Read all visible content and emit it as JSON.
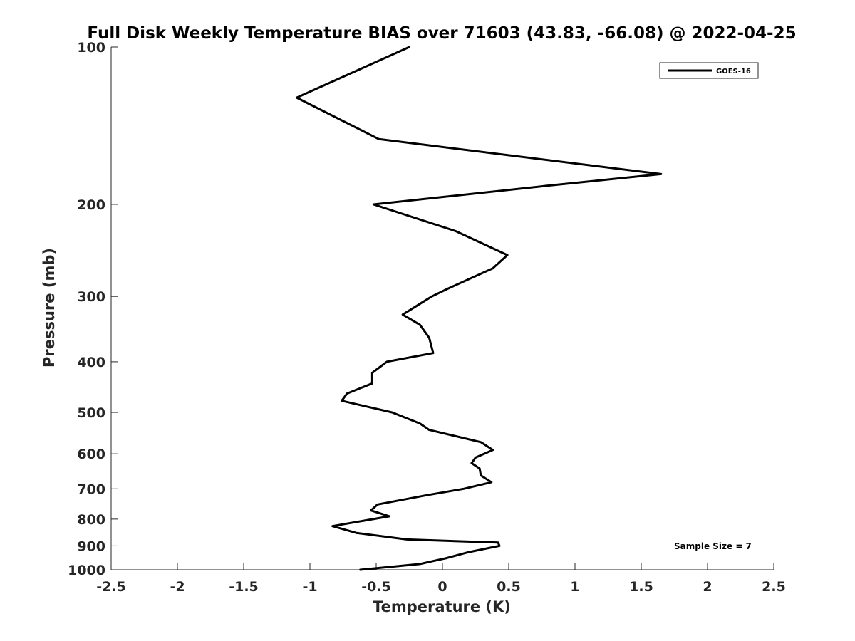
{
  "chart_data": {
    "type": "line",
    "title": "Full Disk Weekly Temperature BIAS over 71603 (43.83, -66.08) @ 2022-04-25",
    "xlabel": "Temperature (K)",
    "ylabel": "Pressure (mb)",
    "xlim": [
      -2.5,
      2.5
    ],
    "ylim": [
      100,
      1000
    ],
    "y_scale": "log",
    "y_inverted": true,
    "x_ticks": [
      -2.5,
      -2,
      -1.5,
      -1,
      -0.5,
      0,
      0.5,
      1,
      1.5,
      2,
      2.5
    ],
    "x_tick_labels": [
      "-2.5",
      "-2",
      "-1.5",
      "-1",
      "-0.5",
      "0",
      "0.5",
      "1",
      "1.5",
      "2",
      "2.5"
    ],
    "y_ticks": [
      100,
      200,
      300,
      400,
      500,
      600,
      700,
      800,
      900,
      1000
    ],
    "y_tick_labels": [
      "100",
      "200",
      "300",
      "400",
      "500",
      "600",
      "700",
      "800",
      "900",
      "1000"
    ],
    "grid": false,
    "legend_position": "top-right",
    "annotation": "Sample Size = 7",
    "series": [
      {
        "name": "GOES-16",
        "color": "#000000",
        "points": [
          {
            "x": -0.25,
            "y": 100
          },
          {
            "x": -1.1,
            "y": 125
          },
          {
            "x": -0.48,
            "y": 150
          },
          {
            "x": 1.65,
            "y": 175
          },
          {
            "x": 0.81,
            "y": 184
          },
          {
            "x": -0.52,
            "y": 200
          },
          {
            "x": 0.1,
            "y": 225
          },
          {
            "x": 0.49,
            "y": 250
          },
          {
            "x": 0.38,
            "y": 265
          },
          {
            "x": 0.04,
            "y": 290
          },
          {
            "x": -0.08,
            "y": 300
          },
          {
            "x": -0.3,
            "y": 325
          },
          {
            "x": -0.17,
            "y": 340
          },
          {
            "x": -0.1,
            "y": 360
          },
          {
            "x": -0.07,
            "y": 385
          },
          {
            "x": -0.42,
            "y": 400
          },
          {
            "x": -0.53,
            "y": 420
          },
          {
            "x": -0.53,
            "y": 440
          },
          {
            "x": -0.72,
            "y": 460
          },
          {
            "x": -0.76,
            "y": 475
          },
          {
            "x": -0.38,
            "y": 500
          },
          {
            "x": -0.17,
            "y": 525
          },
          {
            "x": -0.1,
            "y": 540
          },
          {
            "x": 0.29,
            "y": 570
          },
          {
            "x": 0.38,
            "y": 590
          },
          {
            "x": 0.25,
            "y": 610
          },
          {
            "x": 0.22,
            "y": 625
          },
          {
            "x": 0.28,
            "y": 640
          },
          {
            "x": 0.29,
            "y": 660
          },
          {
            "x": 0.37,
            "y": 680
          },
          {
            "x": 0.16,
            "y": 700
          },
          {
            "x": -0.12,
            "y": 720
          },
          {
            "x": -0.49,
            "y": 750
          },
          {
            "x": -0.54,
            "y": 770
          },
          {
            "x": -0.4,
            "y": 790
          },
          {
            "x": -0.83,
            "y": 825
          },
          {
            "x": -0.65,
            "y": 850
          },
          {
            "x": -0.27,
            "y": 875
          },
          {
            "x": 0.42,
            "y": 887
          },
          {
            "x": 0.43,
            "y": 900
          },
          {
            "x": 0.2,
            "y": 925
          },
          {
            "x": 0.03,
            "y": 950
          },
          {
            "x": -0.07,
            "y": 962
          },
          {
            "x": -0.17,
            "y": 975
          },
          {
            "x": -0.62,
            "y": 1000
          }
        ]
      }
    ]
  }
}
